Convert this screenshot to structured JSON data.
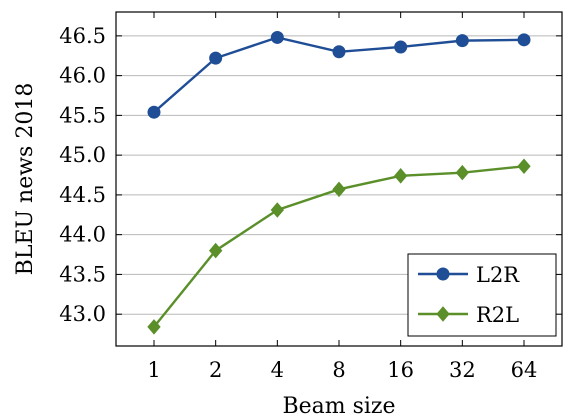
{
  "chart_data": {
    "type": "line",
    "xlabel": "Beam size",
    "ylabel": "BLEU news 2018",
    "x": [
      "1",
      "2",
      "4",
      "8",
      "16",
      "32",
      "64"
    ],
    "ylim": [
      42.6,
      46.8
    ],
    "yticks": [
      "43.0",
      "43.5",
      "44.0",
      "44.5",
      "45.0",
      "45.5",
      "46.0",
      "46.5"
    ],
    "grid": "horizontal",
    "legend_position": "bottom-right",
    "series": [
      {
        "name": "L2R",
        "color": "#1f4e96",
        "marker": "circle",
        "values": [
          45.54,
          46.22,
          46.48,
          46.3,
          46.36,
          46.44,
          46.45
        ]
      },
      {
        "name": "R2L",
        "color": "#5a8f29",
        "marker": "diamond",
        "values": [
          42.84,
          43.8,
          44.31,
          44.57,
          44.74,
          44.78,
          44.86
        ]
      }
    ]
  }
}
